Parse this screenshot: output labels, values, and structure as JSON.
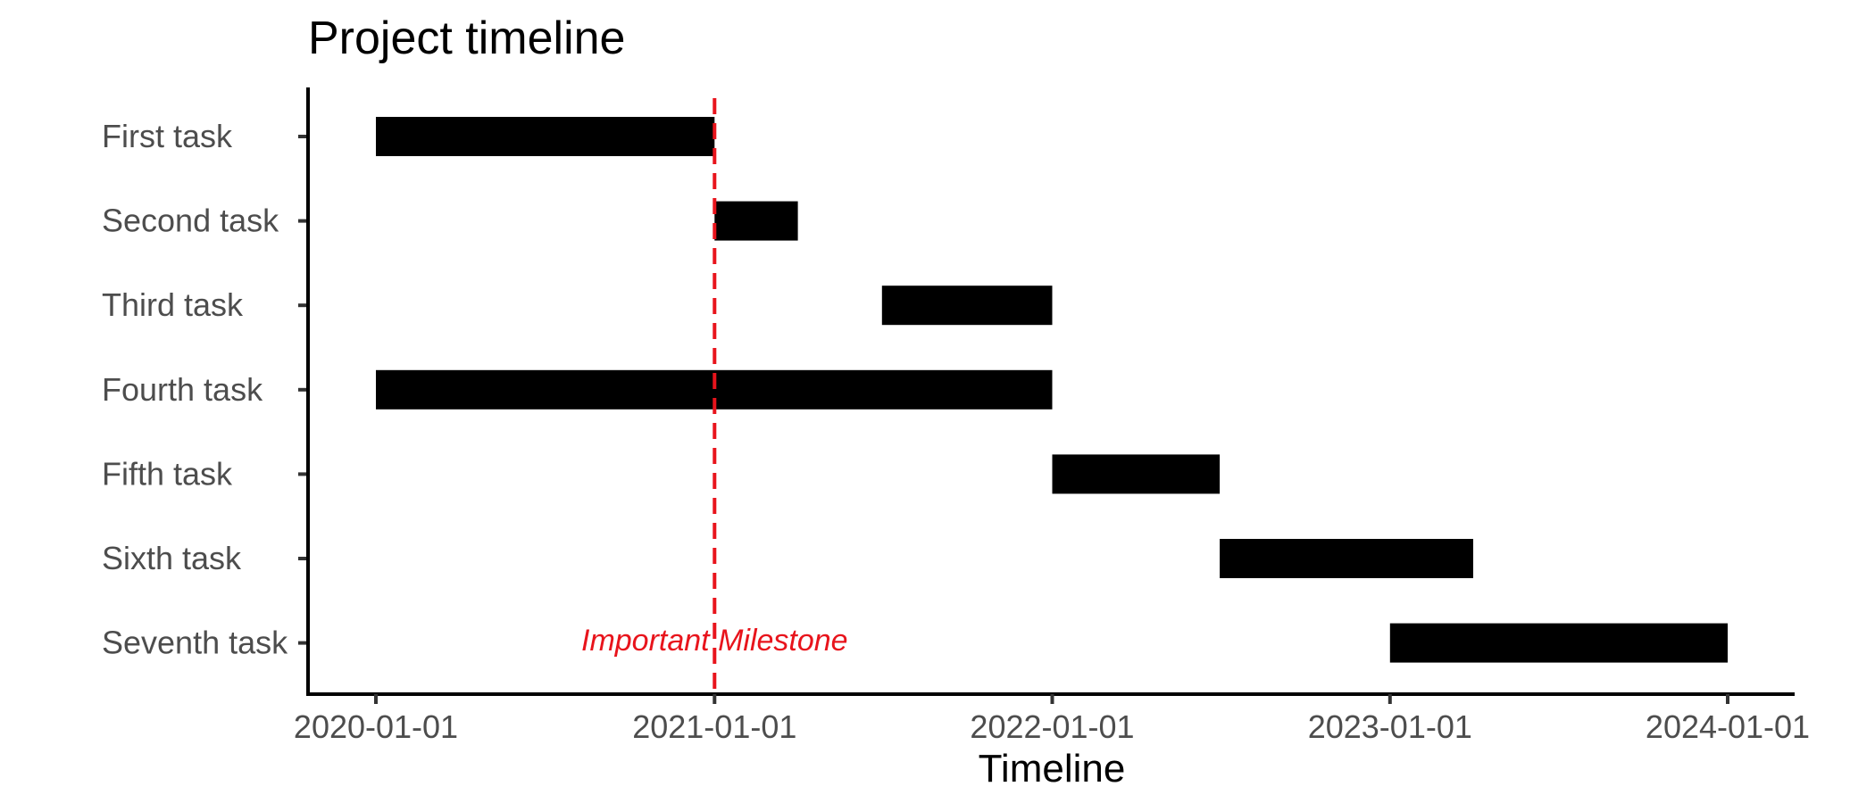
{
  "chart_data": {
    "type": "bar",
    "orientation": "horizontal",
    "title": "Project timeline",
    "xlabel": "Timeline",
    "ylabel": "",
    "xlim": [
      "2019-10-01",
      "2024-03-15"
    ],
    "x_ticks": [
      "2020-01-01",
      "2021-01-01",
      "2022-01-01",
      "2023-01-01",
      "2024-01-01"
    ],
    "grid": false,
    "bar_color": "#000000",
    "tasks": [
      {
        "name": "First task",
        "start": "2020-01-01",
        "end": "2021-01-01"
      },
      {
        "name": "Second task",
        "start": "2021-01-01",
        "end": "2021-04-01"
      },
      {
        "name": "Third task",
        "start": "2021-07-01",
        "end": "2022-01-01"
      },
      {
        "name": "Fourth task",
        "start": "2020-01-01",
        "end": "2022-01-01"
      },
      {
        "name": "Fifth task",
        "start": "2022-01-01",
        "end": "2022-07-01"
      },
      {
        "name": "Sixth task",
        "start": "2022-07-01",
        "end": "2023-04-01"
      },
      {
        "name": "Seventh task",
        "start": "2023-01-01",
        "end": "2024-01-01"
      }
    ],
    "annotations": [
      {
        "type": "vline",
        "x": "2021-01-01",
        "label": "Important Milestone",
        "color": "#e8141c",
        "line_style": "dashed"
      }
    ]
  }
}
